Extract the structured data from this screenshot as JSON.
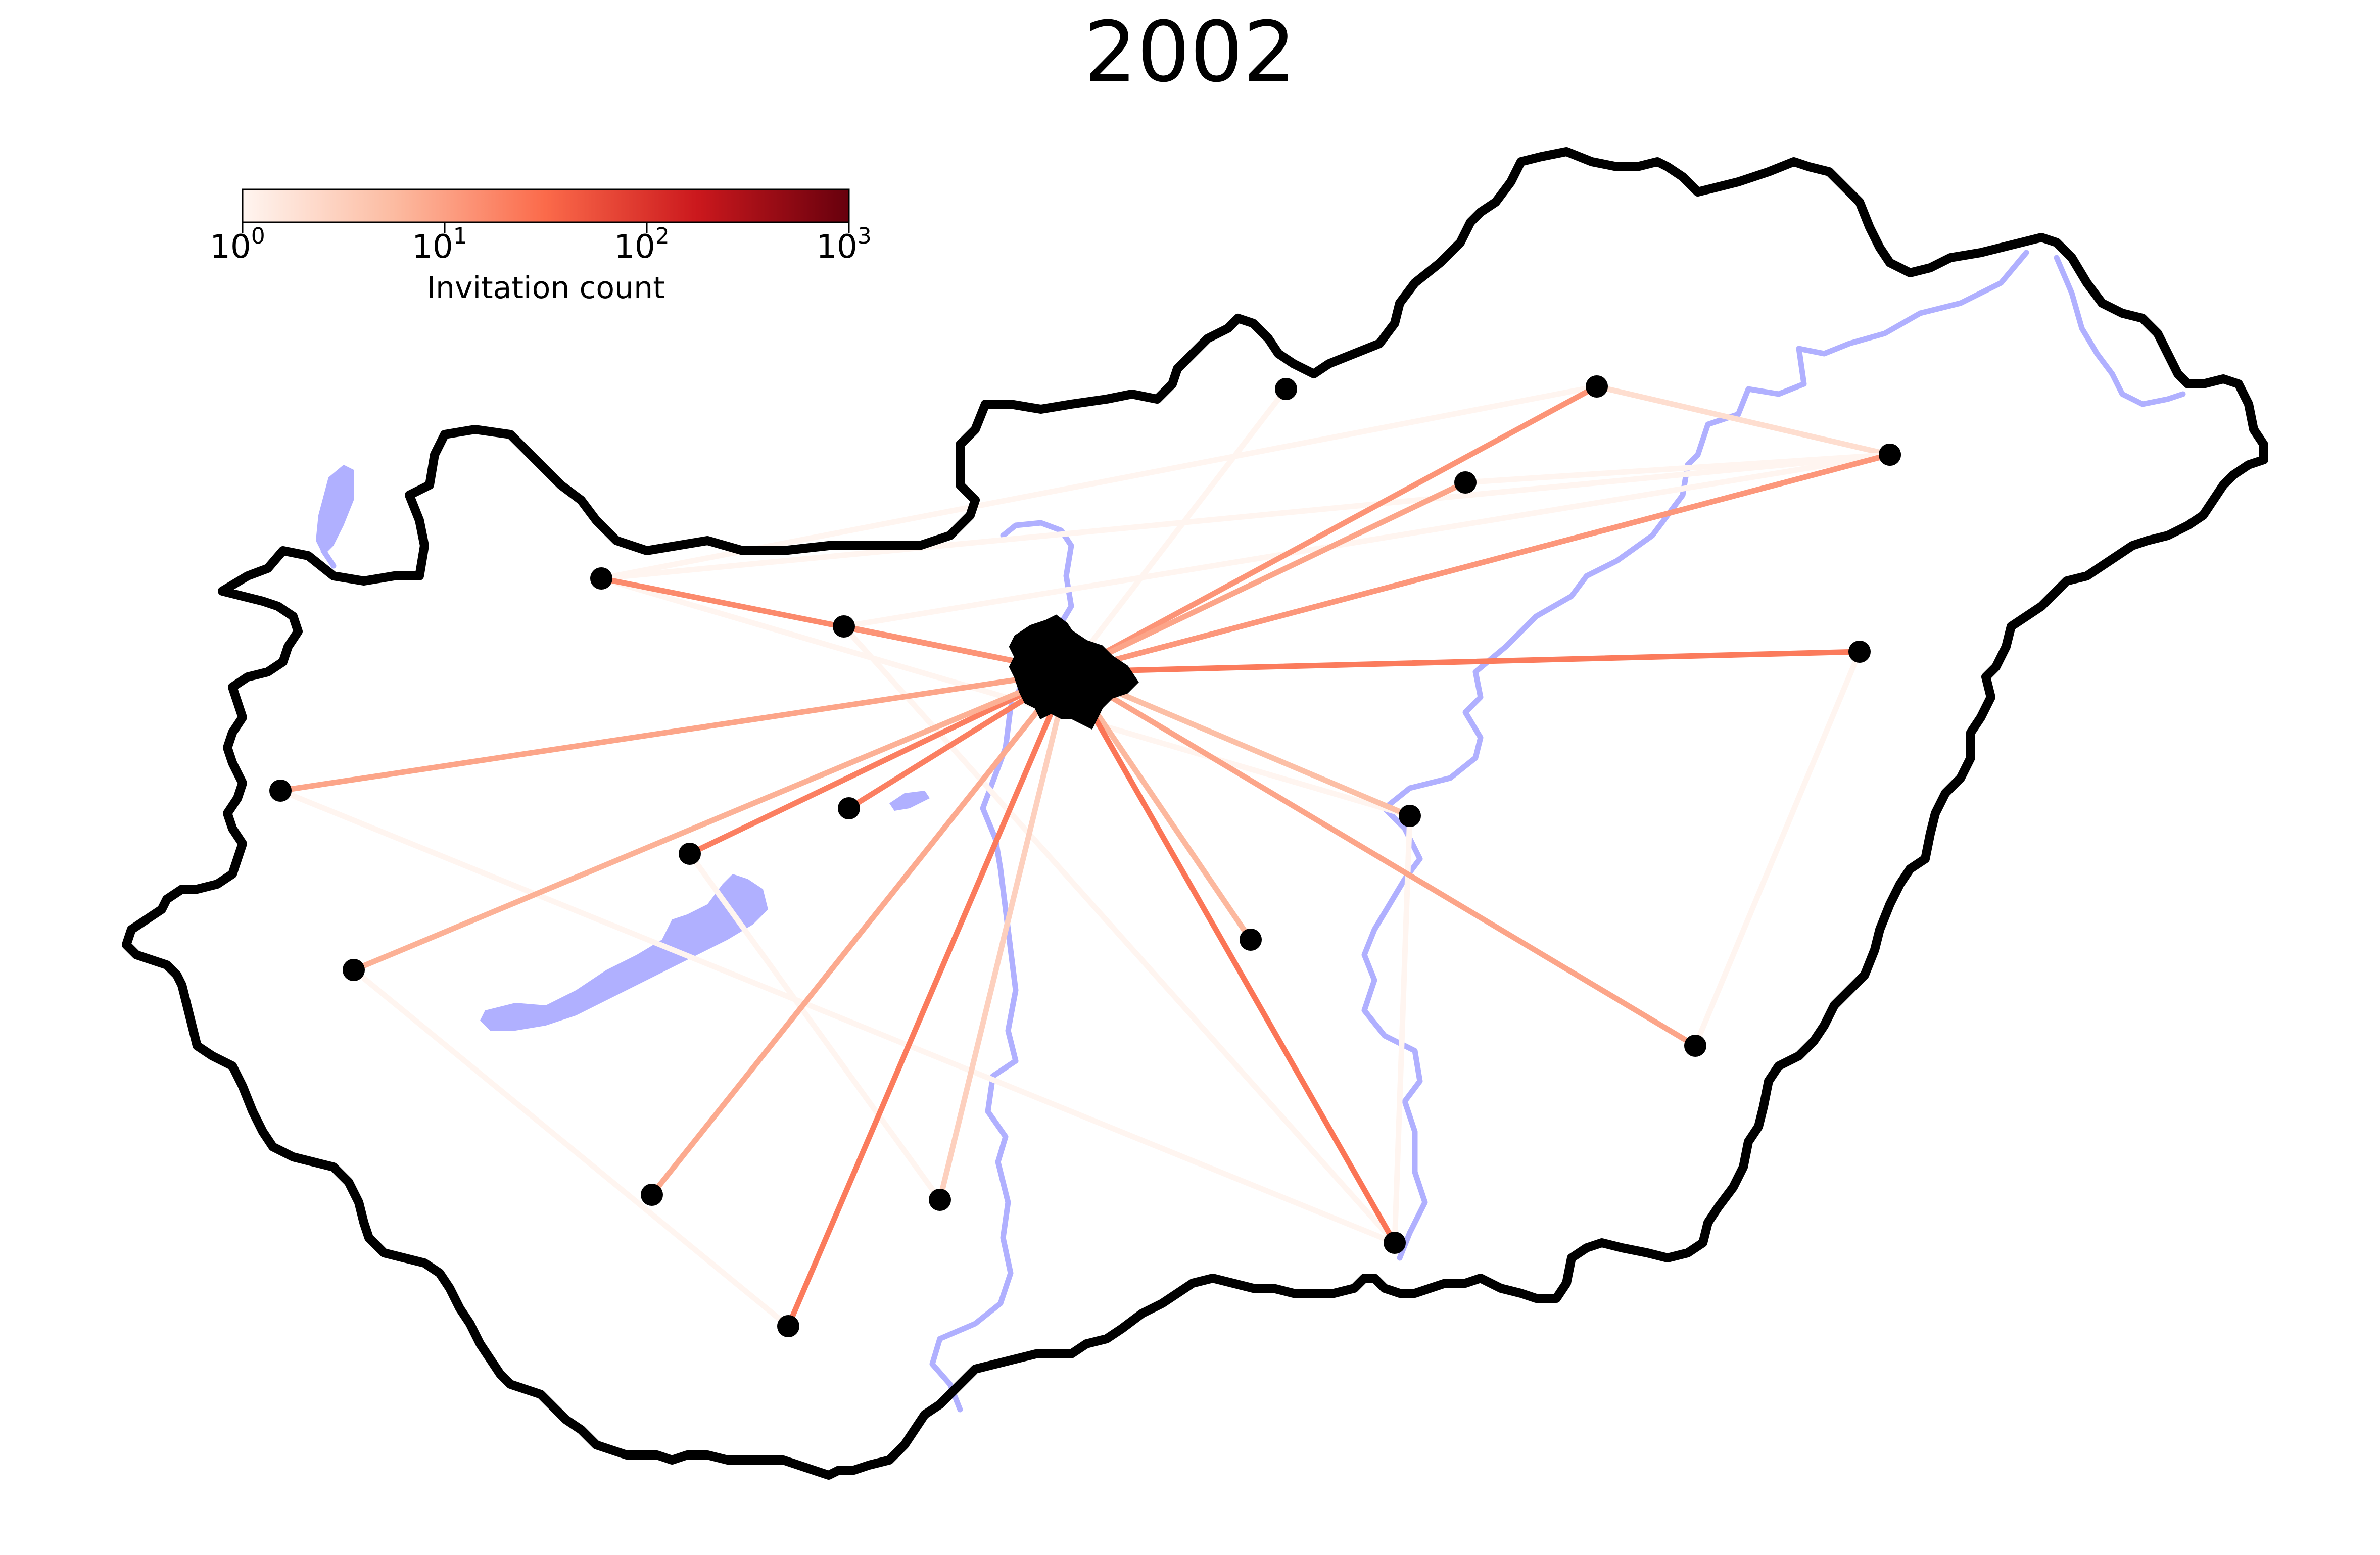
{
  "title": "2002",
  "colorbar": {
    "label": "Invitation count",
    "scale": "log",
    "min": 1,
    "max": 1000,
    "ticks": [
      {
        "base": "10",
        "exp": "0",
        "value": 1
      },
      {
        "base": "10",
        "exp": "1",
        "value": 10
      },
      {
        "base": "10",
        "exp": "2",
        "value": 100
      },
      {
        "base": "10",
        "exp": "3",
        "value": 1000
      }
    ],
    "colors": [
      "#fff5f0",
      "#fcbba1",
      "#fb6a4a",
      "#cb181d",
      "#67000d"
    ]
  },
  "colors": {
    "border": "#000000",
    "water": "#b0b0ff",
    "hub": "#000000",
    "node": "#000000"
  },
  "hub": {
    "name": "Budapest"
  },
  "nodes": [
    {
      "id": "n1",
      "count": 1
    },
    {
      "id": "n2",
      "count": 1
    },
    {
      "id": "n3",
      "count": 1
    },
    {
      "id": "n4",
      "count": 1
    },
    {
      "id": "n5",
      "count": 1
    },
    {
      "id": "n6",
      "count": 1
    },
    {
      "id": "n7",
      "count": 1
    },
    {
      "id": "n8",
      "count": 1
    },
    {
      "id": "n9",
      "count": 1
    },
    {
      "id": "n10",
      "count": 1
    },
    {
      "id": "n11",
      "count": 1
    },
    {
      "id": "n12",
      "count": 1
    },
    {
      "id": "n13",
      "count": 1
    },
    {
      "id": "n14",
      "count": 1
    },
    {
      "id": "n15",
      "count": 1
    },
    {
      "id": "n16",
      "count": 1
    },
    {
      "id": "n17",
      "count": 1
    },
    {
      "id": "n18",
      "count": 1
    },
    {
      "id": "n19",
      "count": 1
    }
  ],
  "hub_edges": [
    {
      "to": "n1",
      "count": 1
    },
    {
      "to": "n2",
      "count": 13
    },
    {
      "to": "n3",
      "count": 9
    },
    {
      "to": "n4",
      "count": 12
    },
    {
      "to": "n5",
      "count": 12
    },
    {
      "to": "n6",
      "count": 16
    },
    {
      "to": "n7",
      "count": 13
    },
    {
      "to": "n8",
      "count": 9
    },
    {
      "to": "n9",
      "count": 20
    },
    {
      "to": "n10",
      "count": 20
    },
    {
      "to": "n11",
      "count": 5
    },
    {
      "to": "n12",
      "count": 7
    },
    {
      "to": "n13",
      "count": 6
    },
    {
      "to": "n14",
      "count": 9
    },
    {
      "to": "n15",
      "count": 8
    },
    {
      "to": "n16",
      "count": 3
    },
    {
      "to": "n17",
      "count": 25
    },
    {
      "to": "n18",
      "count": 22
    },
    {
      "to": "n19",
      "count": 22
    }
  ],
  "other_edges": [
    {
      "from": "n2",
      "to": "n4",
      "count": 2
    },
    {
      "from": "n2",
      "to": "n6",
      "count": 1
    },
    {
      "from": "n3",
      "to": "n5",
      "count": 1
    },
    {
      "from": "n10",
      "to": "n16",
      "count": 1
    },
    {
      "from": "n12",
      "to": "n18",
      "count": 1
    },
    {
      "from": "n11",
      "to": "n17",
      "count": 1
    },
    {
      "from": "n19",
      "to": "n14",
      "count": 1
    },
    {
      "from": "n8",
      "to": "n17",
      "count": 1
    },
    {
      "from": "n7",
      "to": "n17",
      "count": 1
    },
    {
      "from": "n11",
      "to": "n6",
      "count": 1
    },
    {
      "from": "n5",
      "to": "n7",
      "count": 1
    },
    {
      "from": "n5",
      "to": "n6",
      "count": 1
    }
  ]
}
